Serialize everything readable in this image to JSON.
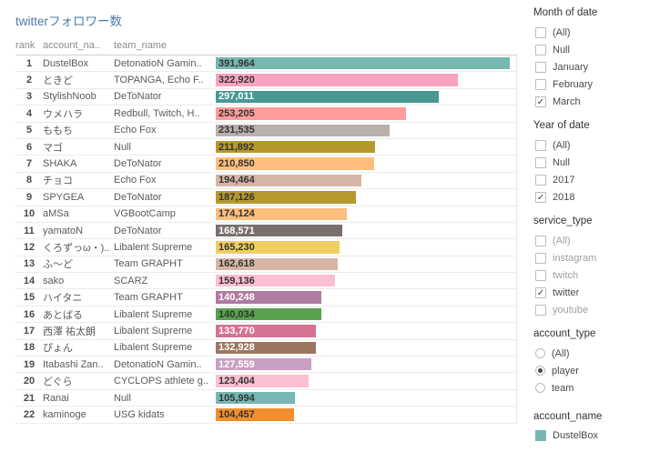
{
  "title": "twitterフォロワー数",
  "table": {
    "columns": [
      "rank",
      "account_na..",
      "team_name"
    ],
    "max_value": 400000,
    "rows": [
      {
        "rank": "1",
        "account": "DustelBox",
        "team": "DetonatioN Gamin..",
        "value_label": "391,964",
        "value": 391964,
        "color": "#76b7b2",
        "label_color": "#333333"
      },
      {
        "rank": "2",
        "account": "ときど",
        "team": "TOPANGA, Echo F..",
        "value_label": "322,920",
        "value": 322920,
        "color": "#f8a3c2",
        "label_color": "#333333"
      },
      {
        "rank": "3",
        "account": "StylishNoob",
        "team": "DeToNator",
        "value_label": "297,011",
        "value": 297011,
        "color": "#499894",
        "label_color": "#ffffff"
      },
      {
        "rank": "4",
        "account": "ウメハラ",
        "team": "Redbull, Twitch, H..",
        "value_label": "253,205",
        "value": 253205,
        "color": "#ff9d9a",
        "label_color": "#333333"
      },
      {
        "rank": "5",
        "account": "ももち",
        "team": "Echo Fox",
        "value_label": "231,535",
        "value": 231535,
        "color": "#bab0ac",
        "label_color": "#333333"
      },
      {
        "rank": "6",
        "account": "マゴ",
        "team": "Null",
        "value_label": "211,892",
        "value": 211892,
        "color": "#b6992d",
        "label_color": "#333333"
      },
      {
        "rank": "7",
        "account": "SHAKA",
        "team": "DeToNator",
        "value_label": "210,850",
        "value": 210850,
        "color": "#ffbe7d",
        "label_color": "#333333"
      },
      {
        "rank": "8",
        "account": "チョコ",
        "team": "Echo Fox",
        "value_label": "194,464",
        "value": 194464,
        "color": "#d7b5a6",
        "label_color": "#333333"
      },
      {
        "rank": "9",
        "account": "SPYGEA",
        "team": "DeToNator",
        "value_label": "187,126",
        "value": 187126,
        "color": "#b6992d",
        "label_color": "#333333"
      },
      {
        "rank": "10",
        "account": "aMSa",
        "team": "VGBootCamp",
        "value_label": "174,124",
        "value": 174124,
        "color": "#ffbe7d",
        "label_color": "#333333"
      },
      {
        "rank": "11",
        "account": "yamatoN",
        "team": "DeToNator",
        "value_label": "168,571",
        "value": 168571,
        "color": "#79706e",
        "label_color": "#ffffff"
      },
      {
        "rank": "12",
        "account": "くろずっω・)..",
        "team": "Libalent Supreme",
        "value_label": "165,230",
        "value": 165230,
        "color": "#f1ce63",
        "label_color": "#333333"
      },
      {
        "rank": "13",
        "account": "ふ〜ど",
        "team": "Team GRAPHT",
        "value_label": "162,618",
        "value": 162618,
        "color": "#d7b5a6",
        "label_color": "#333333"
      },
      {
        "rank": "14",
        "account": "sako",
        "team": "SCARZ",
        "value_label": "159,136",
        "value": 159136,
        "color": "#fabfd2",
        "label_color": "#333333"
      },
      {
        "rank": "15",
        "account": "ハイタニ",
        "team": "Team GRAPHT",
        "value_label": "140,248",
        "value": 140248,
        "color": "#b07aa1",
        "label_color": "#ffffff"
      },
      {
        "rank": "16",
        "account": "あとばる",
        "team": "Libalent Supreme",
        "value_label": "140,034",
        "value": 140034,
        "color": "#59a14f",
        "label_color": "#333333"
      },
      {
        "rank": "17",
        "account": "西澤 祐太朗",
        "team": "Libalent Supreme",
        "value_label": "133,770",
        "value": 133770,
        "color": "#d37295",
        "label_color": "#ffffff"
      },
      {
        "rank": "18",
        "account": "ぴょん",
        "team": "Libalent Supreme",
        "value_label": "132,928",
        "value": 132928,
        "color": "#9d7660",
        "label_color": "#ffffff"
      },
      {
        "rank": "19",
        "account": "Itabashi Zan..",
        "team": "DetonatioN Gamin..",
        "value_label": "127,559",
        "value": 127559,
        "color": "#c9a0c1",
        "label_color": "#ffffff"
      },
      {
        "rank": "20",
        "account": "どぐら",
        "team": "CYCLOPS athlete g..",
        "value_label": "123,404",
        "value": 123404,
        "color": "#fabfd2",
        "label_color": "#333333"
      },
      {
        "rank": "21",
        "account": "Ranai",
        "team": "Null",
        "value_label": "105,994",
        "value": 105994,
        "color": "#76b7b2",
        "label_color": "#333333"
      },
      {
        "rank": "22",
        "account": "kaminoge",
        "team": "USG kidats",
        "value_label": "104,457",
        "value": 104457,
        "color": "#f28e2b",
        "label_color": "#333333"
      }
    ]
  },
  "filters": [
    {
      "id": "month-of-date",
      "title": "Month of date",
      "control": "checkbox",
      "options": [
        {
          "label": "(All)",
          "checked": false
        },
        {
          "label": "Null",
          "checked": false
        },
        {
          "label": "January",
          "checked": false
        },
        {
          "label": "February",
          "checked": false
        },
        {
          "label": "March",
          "checked": true
        }
      ]
    },
    {
      "id": "year-of-date",
      "title": "Year of date",
      "control": "checkbox",
      "options": [
        {
          "label": "(All)",
          "checked": false
        },
        {
          "label": "Null",
          "checked": false
        },
        {
          "label": "2017",
          "checked": false
        },
        {
          "label": "2018",
          "checked": true
        }
      ]
    },
    {
      "id": "service-type",
      "title": "service_type",
      "control": "checkbox",
      "options": [
        {
          "label": "(All)",
          "checked": false,
          "muted": true
        },
        {
          "label": "instagram",
          "checked": false,
          "muted": true
        },
        {
          "label": "twitch",
          "checked": false,
          "muted": true
        },
        {
          "label": "twitter",
          "checked": true
        },
        {
          "label": "youtube",
          "checked": false,
          "muted": true
        }
      ]
    },
    {
      "id": "account-type",
      "title": "account_type",
      "control": "radio",
      "options": [
        {
          "label": "(All)",
          "checked": false
        },
        {
          "label": "player",
          "checked": true
        },
        {
          "label": "team",
          "checked": false
        }
      ]
    }
  ],
  "legend": {
    "title": "account_name",
    "items": [
      {
        "label": "DustelBox",
        "color": "#76b7b2"
      }
    ]
  },
  "chart_data": {
    "type": "bar",
    "orientation": "horizontal",
    "title": "twitterフォロワー数",
    "categories": [
      "DustelBox",
      "ときど",
      "StylishNoob",
      "ウメハラ",
      "ももち",
      "マゴ",
      "SHAKA",
      "チョコ",
      "SPYGEA",
      "aMSa",
      "yamatoN",
      "くろずっω・)..",
      "ふ〜ど",
      "sako",
      "ハイタニ",
      "あとばる",
      "西澤 祐太朗",
      "ぴょん",
      "Itabashi Zan..",
      "どぐら",
      "Ranai",
      "kaminoge"
    ],
    "values": [
      391964,
      322920,
      297011,
      253205,
      231535,
      211892,
      210850,
      194464,
      187126,
      174124,
      168571,
      165230,
      162618,
      159136,
      140248,
      140034,
      133770,
      132928,
      127559,
      123404,
      105994,
      104457
    ],
    "value_labels": [
      "391,964",
      "322,920",
      "297,011",
      "253,205",
      "231,535",
      "211,892",
      "210,850",
      "194,464",
      "187,126",
      "174,124",
      "168,571",
      "165,230",
      "162,618",
      "159,136",
      "140,248",
      "140,034",
      "133,770",
      "132,928",
      "127,559",
      "123,404",
      "105,994",
      "104,457"
    ],
    "xlabel": "",
    "ylabel": "",
    "xlim": [
      0,
      400000
    ],
    "grid": false,
    "legend_position": "right"
  }
}
